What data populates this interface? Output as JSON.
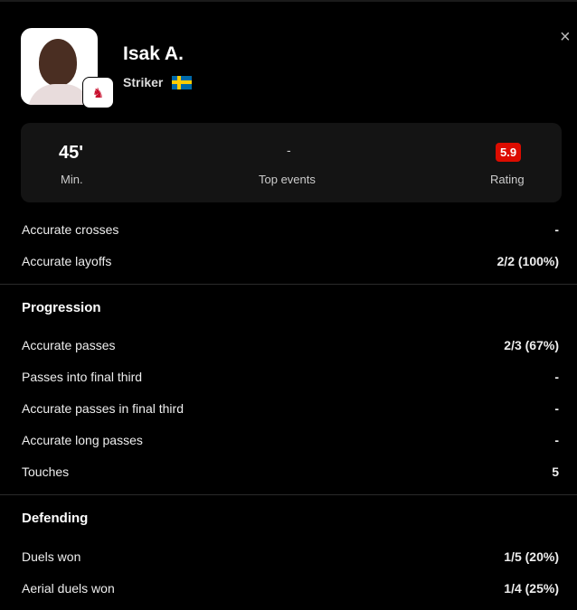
{
  "player": {
    "name": "Isak A.",
    "position": "Striker",
    "nationality_flag": "sweden-flag",
    "club_badge": "liverpool-fc"
  },
  "close_icon": "×",
  "summary": {
    "minutes": "45'",
    "minutes_label": "Min.",
    "top_events": "-",
    "top_events_label": "Top events",
    "rating": "5.9",
    "rating_label": "Rating",
    "rating_color": "#dc0c00"
  },
  "attack_rows": [
    {
      "label": "Accurate crosses",
      "value": "-"
    },
    {
      "label": "Accurate layoffs",
      "value": "2/2 (100%)"
    }
  ],
  "progression": {
    "title": "Progression",
    "rows": [
      {
        "label": "Accurate passes",
        "value": "2/3 (67%)"
      },
      {
        "label": "Passes into final third",
        "value": "-"
      },
      {
        "label": "Accurate passes in final third",
        "value": "-"
      },
      {
        "label": "Accurate long passes",
        "value": "-"
      },
      {
        "label": "Touches",
        "value": "5"
      }
    ]
  },
  "defending": {
    "title": "Defending",
    "rows": [
      {
        "label": "Duels won",
        "value": "1/5 (20%)"
      },
      {
        "label": "Aerial duels won",
        "value": "1/4 (25%)"
      }
    ]
  }
}
